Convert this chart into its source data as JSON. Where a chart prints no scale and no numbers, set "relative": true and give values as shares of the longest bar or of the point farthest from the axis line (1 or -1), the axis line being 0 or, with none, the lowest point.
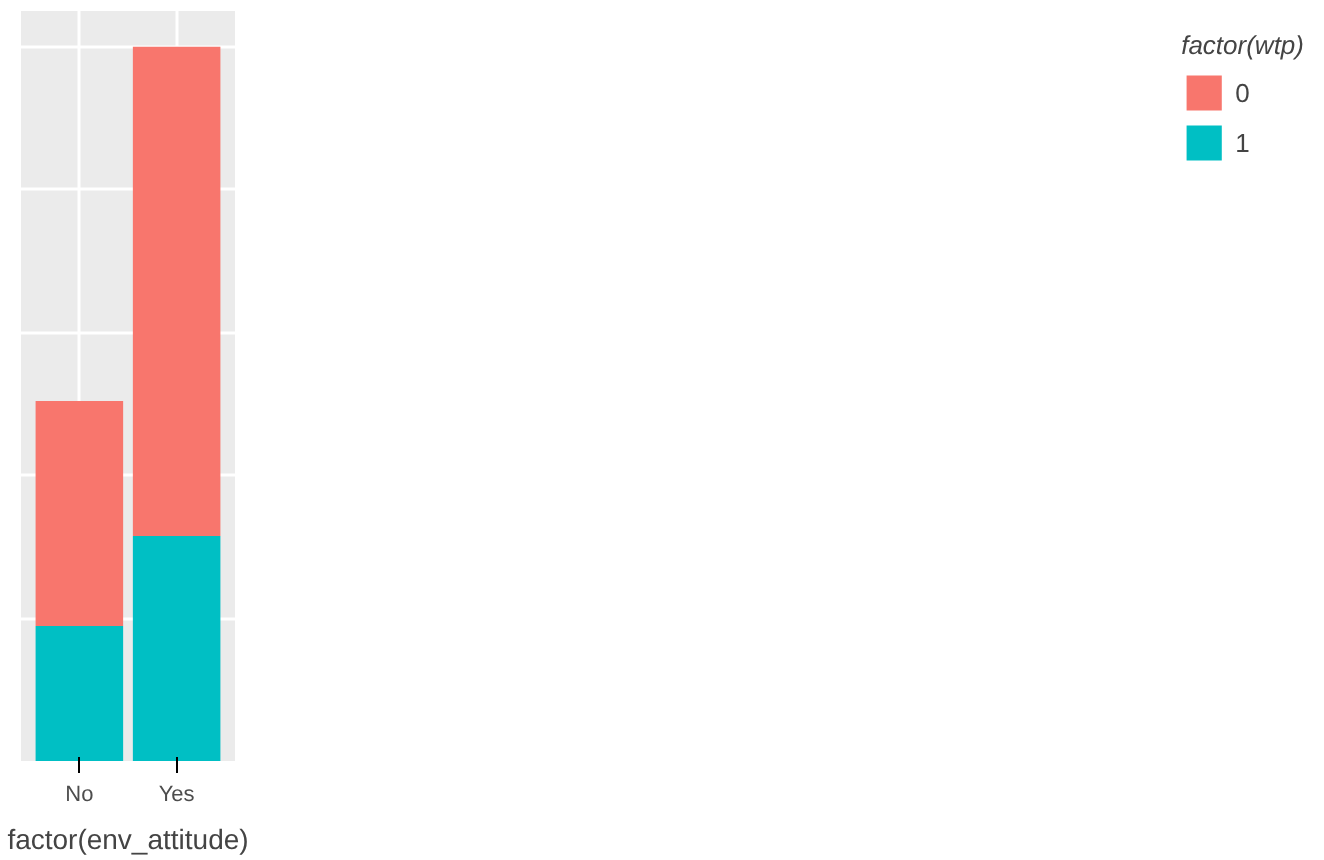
{
  "chart_data": {
    "type": "bar",
    "stacked": true,
    "relative": true,
    "xlabel": "factor(env_attitude)",
    "legend_title": "factor(wtp)",
    "categories": [
      "No",
      "Yes"
    ],
    "series": [
      {
        "name": "1",
        "color": "#00bfc4",
        "values": [
          0.189,
          0.315
        ]
      },
      {
        "name": "0",
        "color": "#f8766d",
        "values": [
          0.315,
          0.685
        ]
      }
    ],
    "grid": true,
    "legend": "right"
  }
}
